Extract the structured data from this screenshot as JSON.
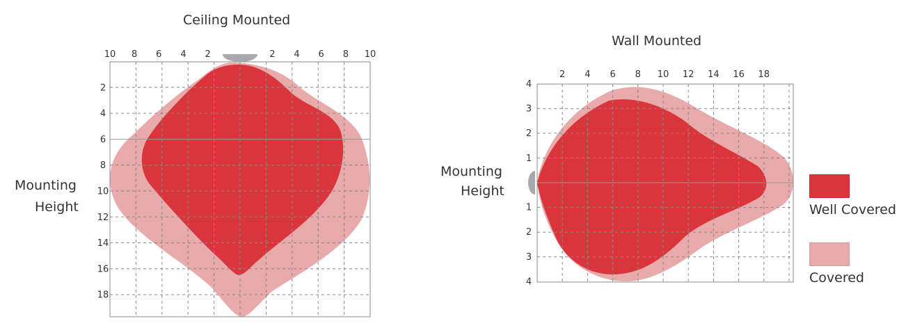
{
  "ceiling": {
    "title": "Ceiling Mounted",
    "side_label_line1": "Mounting",
    "side_label_line2": "Height",
    "x_ticks": [
      "10",
      "8",
      "6",
      "4",
      "2",
      "2",
      "4",
      "6",
      "8",
      "10"
    ],
    "y_ticks": [
      "2",
      "4",
      "6",
      "8",
      "10",
      "12",
      "14",
      "16",
      "18"
    ]
  },
  "wall": {
    "title": "Wall Mounted",
    "side_label_line1": "Mounting",
    "side_label_line2": "Height",
    "x_ticks": [
      "2",
      "4",
      "6",
      "8",
      "10",
      "12",
      "14",
      "16",
      "18"
    ],
    "y_ticks_top": [
      "4",
      "3",
      "2",
      "1"
    ],
    "y_ticks_bottom": [
      "1",
      "2",
      "3",
      "4"
    ]
  },
  "legend": {
    "items": [
      {
        "label": "Well Covered",
        "color": "#d9353b"
      },
      {
        "label": "Covered",
        "color": "#e8aaaa"
      }
    ]
  },
  "colors": {
    "well_covered": "#d9353b",
    "covered": "#e8aaaa",
    "grid": "#888888",
    "sensor": "#a9a9ad"
  }
}
